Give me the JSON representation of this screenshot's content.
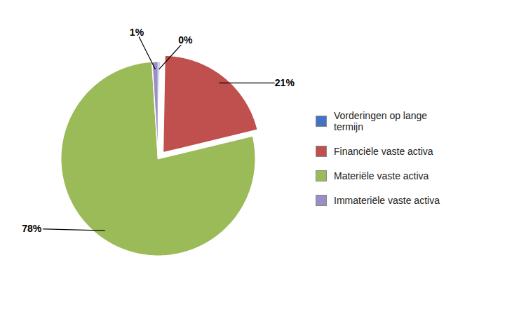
{
  "chart_data": {
    "type": "pie",
    "categories": [
      "Vorderingen op lange\n termijn",
      "Financiële vaste activa",
      "Materiële vaste activa",
      "Immateriële vaste activa"
    ],
    "values": [
      0.3,
      21,
      78,
      1
    ],
    "value_labels": [
      "0%",
      "21%",
      "78%",
      "1%"
    ],
    "colors": [
      "#4472C4",
      "#C0504D",
      "#9BBB59",
      "#9B8EC4"
    ],
    "data_labels": true,
    "legend": "right"
  }
}
